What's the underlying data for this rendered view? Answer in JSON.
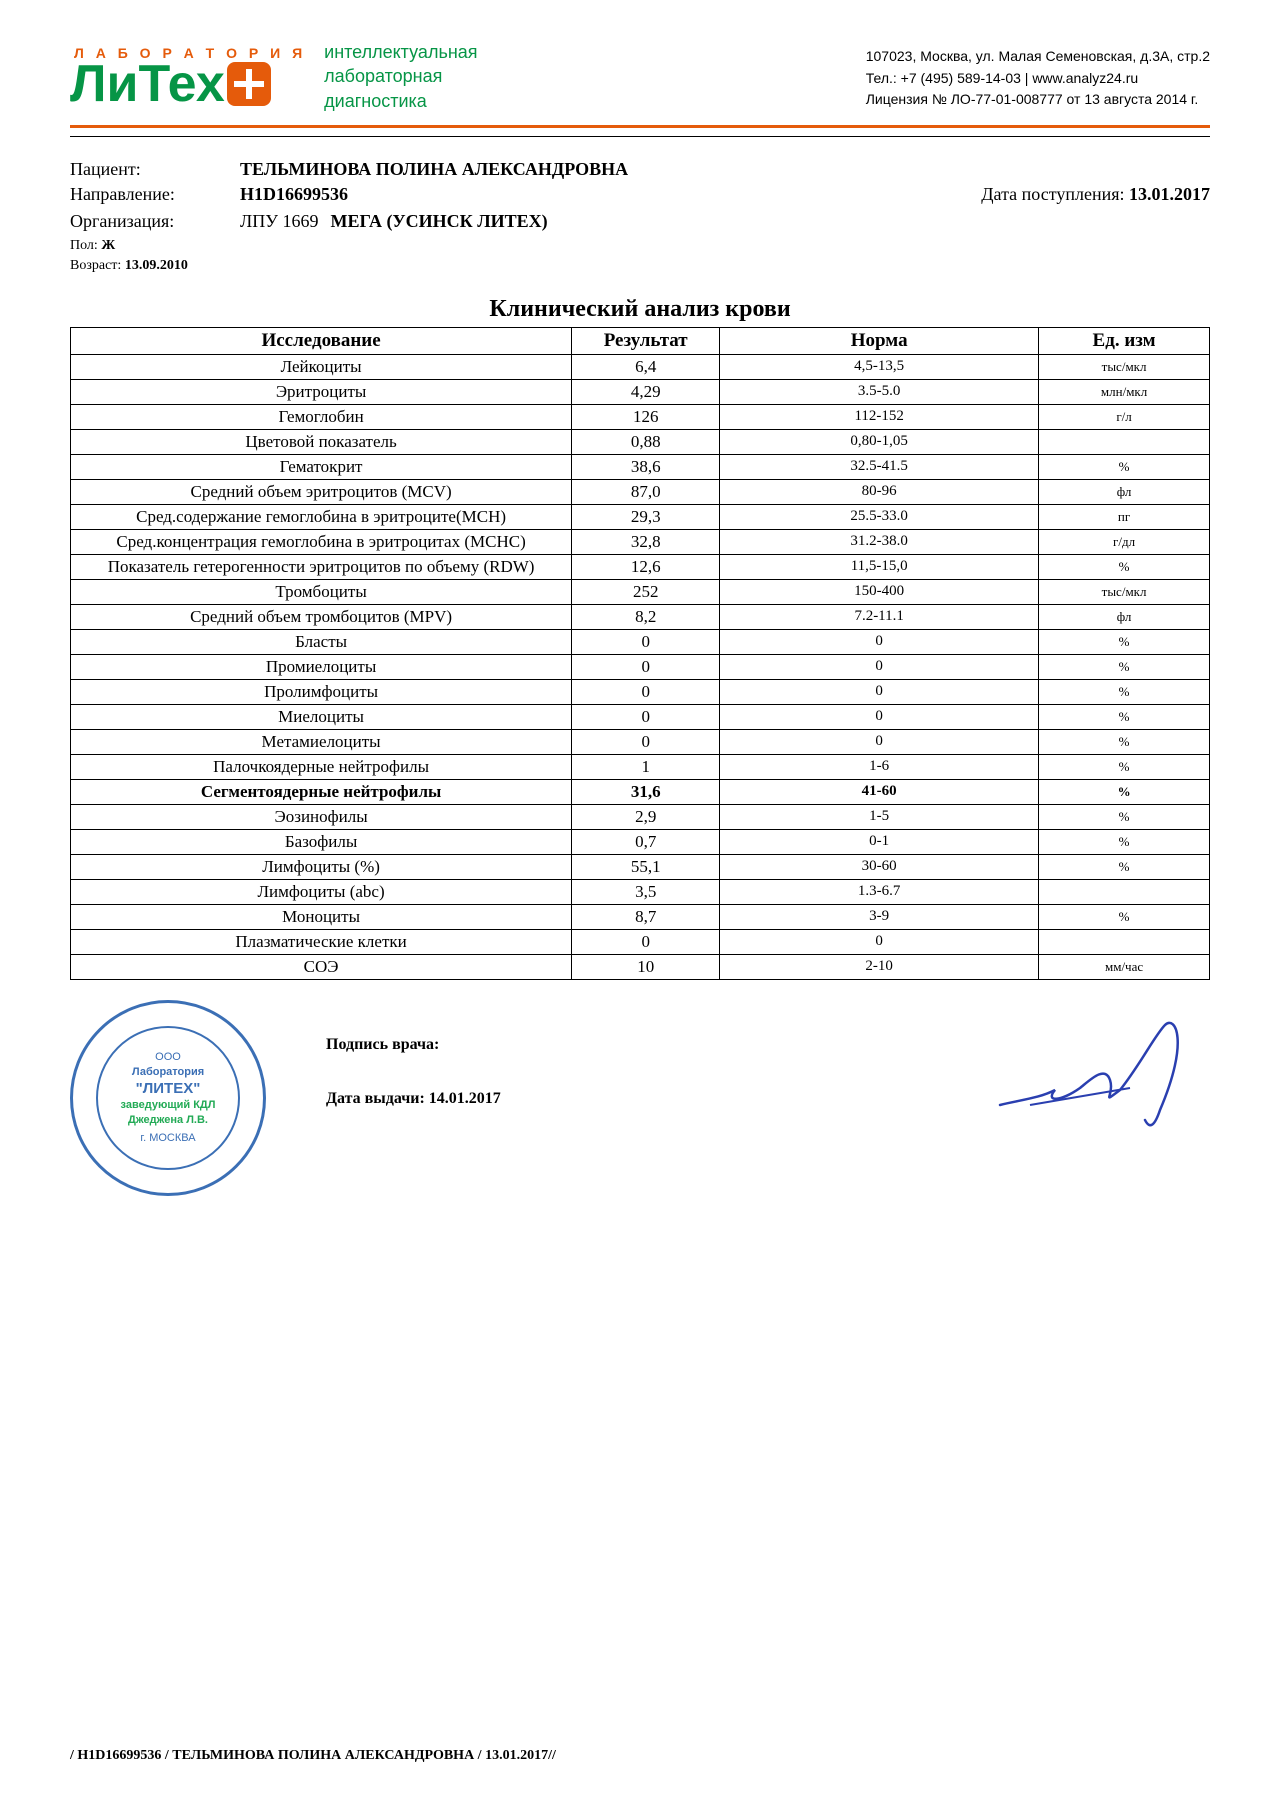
{
  "header": {
    "logo_lab": "Л А Б О Р А Т О Р И Я",
    "logo_name": "ЛиТех",
    "tagline1": "интеллектуальная",
    "tagline2": "лабораторная",
    "tagline3": "диагностика",
    "addr": "107023, Москва, ул. Малая Семеновская, д.3А, стр.2",
    "tel": "Тел.: +7 (495) 589-14-03   |   www.analyz24.ru",
    "lic": "Лицензия № ЛО-77-01-008777 от 13 августа 2014 г."
  },
  "patient": {
    "label_patient": "Пациент:",
    "name": "ТЕЛЬМИНОВА ПОЛИНА АЛЕКСАНДРОВНА",
    "label_ref": "Направление:",
    "ref": "H1D16699536",
    "label_date_in": "Дата поступления:",
    "date_in": "13.01.2017",
    "label_org": "Организация:",
    "org_code": "ЛПУ 1669",
    "org_name": "МЕГА (УСИНСК ЛИТЕХ)",
    "label_sex": "Пол:",
    "sex": "Ж",
    "label_age": "Возраст:",
    "age": "13.09.2010"
  },
  "title": "Клинический анализ крови",
  "columns": {
    "c1": "Исследование",
    "c2": "Результат",
    "c3": "Норма",
    "c4": "Ед. изм"
  },
  "rows": [
    {
      "n": "Лейкоциты",
      "r": "6,4",
      "m": "4,5-13,5",
      "u": "тыс/мкл"
    },
    {
      "n": "Эритроциты",
      "r": "4,29",
      "m": "3.5-5.0",
      "u": "млн/мкл"
    },
    {
      "n": "Гемоглобин",
      "r": "126",
      "m": "112-152",
      "u": "г/л"
    },
    {
      "n": "Цветовой показатель",
      "r": "0,88",
      "m": "0,80-1,05",
      "u": ""
    },
    {
      "n": "Гематокрит",
      "r": "38,6",
      "m": "32.5-41.5",
      "u": "%"
    },
    {
      "n": "Средний объем эритроцитов (MCV)",
      "r": "87,0",
      "m": "80-96",
      "u": "фл"
    },
    {
      "n": "Сред.содержание гемоглобина в эритроците(MCH)",
      "r": "29,3",
      "m": "25.5-33.0",
      "u": "пг"
    },
    {
      "n": "Сред.концентрация гемоглобина в эритроцитах (MCHC)",
      "r": "32,8",
      "m": "31.2-38.0",
      "u": "г/дл"
    },
    {
      "n": "Показатель гетерогенности эритроцитов по объему (RDW)",
      "r": "12,6",
      "m": "11,5-15,0",
      "u": "%"
    },
    {
      "n": "Тромбоциты",
      "r": "252",
      "m": "150-400",
      "u": "тыс/мкл"
    },
    {
      "n": "Средний объем тромбоцитов (MPV)",
      "r": "8,2",
      "m": "7.2-11.1",
      "u": "фл"
    },
    {
      "n": "Бласты",
      "r": "0",
      "m": "0",
      "u": "%"
    },
    {
      "n": "Промиелоциты",
      "r": "0",
      "m": "0",
      "u": "%"
    },
    {
      "n": "Пролимфоциты",
      "r": "0",
      "m": "0",
      "u": "%"
    },
    {
      "n": "Миелоциты",
      "r": "0",
      "m": "0",
      "u": "%"
    },
    {
      "n": "Метамиелоциты",
      "r": "0",
      "m": "0",
      "u": "%"
    },
    {
      "n": "Палочкоядерные нейтрофилы",
      "r": "1",
      "m": "1-6",
      "u": "%"
    },
    {
      "n": "Сегментоядерные нейтрофилы",
      "r": "31,6",
      "m": "41-60",
      "u": "%",
      "bold": true
    },
    {
      "n": "Эозинофилы",
      "r": "2,9",
      "m": "1-5",
      "u": "%"
    },
    {
      "n": "Базофилы",
      "r": "0,7",
      "m": "0-1",
      "u": "%"
    },
    {
      "n": "Лимфоциты (%)",
      "r": "55,1",
      "m": "30-60",
      "u": "%"
    },
    {
      "n": "Лимфоциты (abc)",
      "r": "3,5",
      "m": "1.3-6.7",
      "u": ""
    },
    {
      "n": "Моноциты",
      "r": "8,7",
      "m": "3-9",
      "u": "%"
    },
    {
      "n": "Плазматические клетки",
      "r": "0",
      "m": "0",
      "u": ""
    },
    {
      "n": "СОЭ",
      "r": "10",
      "m": "2-10",
      "u": "мм/час"
    }
  ],
  "stamp": {
    "line1": "ООО",
    "line2": "Лаборатория",
    "line3": "\"ЛИТЕХ\"",
    "line4": "заведующий КДЛ",
    "line5": "Джеджена Л.В.",
    "city": "г. МОСКВА"
  },
  "sig": {
    "label_sign": "Подпись врача:",
    "label_date": "Дата выдачи: 14.01.2017"
  },
  "footer": "/ H1D16699536 / ТЕЛЬМИНОВА ПОЛИНА АЛЕКСАНДРОВНА / 13.01.2017//",
  "colors": {
    "orange": "#e55b0b",
    "green": "#069546",
    "stamp_blue": "#3b6fb5",
    "sig_ink": "#2a3fb0"
  }
}
